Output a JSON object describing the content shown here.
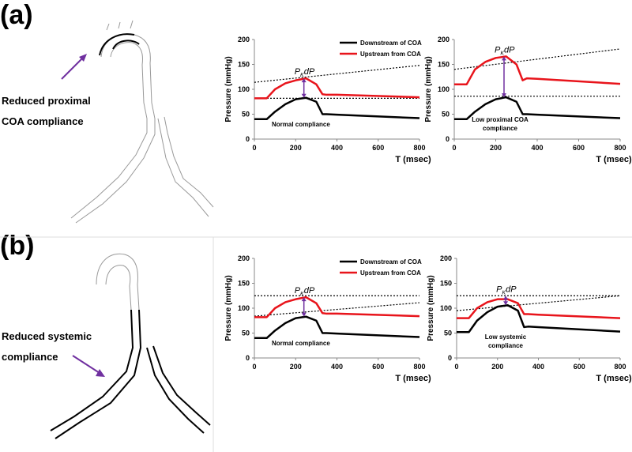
{
  "panels": [
    {
      "label": "(a)",
      "caption": [
        "Reduced proximal",
        "COA compliance"
      ]
    },
    {
      "label": "(b)",
      "caption": [
        "Reduced systemic",
        "compliance"
      ]
    }
  ],
  "chart_data": [
    {
      "type": "line",
      "xlabel": "T (msec)",
      "ylabel": "Pressure (mmHg)",
      "xlim": [
        0,
        800
      ],
      "xticks": [
        0,
        200,
        400,
        600,
        800
      ],
      "ylim": [
        0,
        200
      ],
      "yticks": [
        0,
        50,
        100,
        150,
        200
      ],
      "x": [
        0,
        60,
        100,
        150,
        200,
        250,
        300,
        330,
        350,
        400,
        800
      ],
      "series": [
        {
          "name": "Downstream of COA",
          "color": "#000000",
          "values": [
            40,
            40,
            55,
            70,
            80,
            83,
            75,
            50,
            50,
            49,
            42
          ]
        },
        {
          "name": "Upstream from COA",
          "color": "#e8141b",
          "values": [
            82,
            82,
            100,
            112,
            118,
            122,
            110,
            90,
            89,
            89,
            84
          ]
        }
      ],
      "legend": true,
      "annotation": [
        "Normal compliance"
      ],
      "pk_label": {
        "base": "P",
        "sub": "K",
        "rest": "dP"
      },
      "arrow": {
        "x": 240,
        "from": 83,
        "to": 122
      },
      "reference_lines": [
        {
          "x": [
            0,
            800
          ],
          "y": [
            114,
            148
          ]
        },
        {
          "x": [
            0,
            800
          ],
          "y": [
            82,
            82
          ]
        }
      ]
    },
    {
      "type": "line",
      "xlabel": "T (msec)",
      "ylabel": "Pressure (mmHg)",
      "xlim": [
        0,
        800
      ],
      "xticks": [
        0,
        200,
        400,
        600,
        800
      ],
      "ylim": [
        0,
        200
      ],
      "yticks": [
        0,
        50,
        100,
        150,
        200
      ],
      "x": [
        0,
        60,
        100,
        150,
        200,
        250,
        300,
        330,
        350,
        400,
        800
      ],
      "series": [
        {
          "color": "#000000",
          "values": [
            40,
            40,
            55,
            70,
            80,
            84,
            75,
            50,
            50,
            49,
            42
          ]
        },
        {
          "color": "#e8141b",
          "values": [
            110,
            110,
            140,
            155,
            163,
            166,
            150,
            118,
            122,
            121,
            111
          ]
        }
      ],
      "legend": false,
      "annotation": [
        "Low proximal COA",
        "compliance"
      ],
      "pk_label": {
        "base": "P",
        "sub": "K",
        "rest": "dP"
      },
      "arrow": {
        "x": 240,
        "from": 84,
        "to": 166
      },
      "reference_lines": [
        {
          "x": [
            0,
            800
          ],
          "y": [
            140,
            181
          ]
        },
        {
          "x": [
            0,
            800
          ],
          "y": [
            86,
            86
          ]
        }
      ]
    },
    {
      "type": "line",
      "xlabel": "T (msec)",
      "ylabel": "Pressure (mmHg)",
      "xlim": [
        0,
        800
      ],
      "xticks": [
        0,
        200,
        400,
        600,
        800
      ],
      "ylim": [
        0,
        200
      ],
      "yticks": [
        0,
        50,
        100,
        150,
        200
      ],
      "x": [
        0,
        60,
        100,
        150,
        200,
        250,
        300,
        330,
        350,
        400,
        800
      ],
      "series": [
        {
          "name": "Downstream of COA",
          "color": "#000000",
          "values": [
            40,
            40,
            55,
            70,
            80,
            83,
            75,
            50,
            50,
            49,
            42
          ]
        },
        {
          "name": "Upstream from COA",
          "color": "#e8141b",
          "values": [
            82,
            82,
            100,
            112,
            118,
            122,
            110,
            90,
            89,
            89,
            84
          ]
        }
      ],
      "legend": true,
      "annotation": [
        "Normal compliance"
      ],
      "pk_label": {
        "base": "P",
        "sub": "K",
        "rest": "dP"
      },
      "arrow": {
        "x": 240,
        "from": 83,
        "to": 122
      },
      "reference_lines": [
        {
          "x": [
            0,
            800
          ],
          "y": [
            125,
            125
          ]
        },
        {
          "x": [
            0,
            800
          ],
          "y": [
            84,
            111
          ]
        }
      ]
    },
    {
      "type": "line",
      "xlabel": "T (msec)",
      "ylabel": "Pressure (mmHg)",
      "xlim": [
        0,
        800
      ],
      "xticks": [
        0,
        200,
        400,
        600,
        800
      ],
      "ylim": [
        0,
        200
      ],
      "yticks": [
        0,
        50,
        100,
        150,
        200
      ],
      "x": [
        0,
        60,
        100,
        150,
        200,
        250,
        300,
        330,
        350,
        400,
        800
      ],
      "series": [
        {
          "color": "#000000",
          "values": [
            52,
            52,
            75,
            92,
            103,
            106,
            95,
            62,
            63,
            62,
            53
          ]
        },
        {
          "color": "#e8141b",
          "values": [
            80,
            80,
            100,
            112,
            118,
            118,
            110,
            88,
            88,
            87,
            80
          ]
        }
      ],
      "legend": false,
      "annotation": [
        "Low systemic",
        "compliance"
      ],
      "pk_label": {
        "base": "P",
        "sub": "K",
        "rest": "dP"
      },
      "arrow": {
        "x": 240,
        "from": 106,
        "to": 125
      },
      "reference_lines": [
        {
          "x": [
            0,
            800
          ],
          "y": [
            125,
            125
          ]
        },
        {
          "x": [
            0,
            800
          ],
          "y": [
            95,
            125
          ]
        }
      ]
    }
  ]
}
